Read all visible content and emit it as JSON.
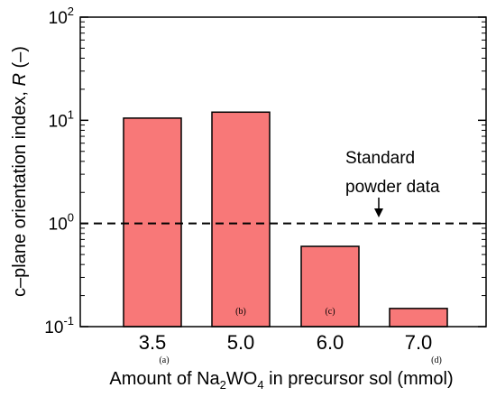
{
  "chart_data": {
    "type": "bar",
    "categories": [
      "3.5",
      "5.0",
      "6.0",
      "7.0"
    ],
    "values": [
      10.5,
      12.0,
      0.6,
      0.15
    ],
    "panel_labels": [
      "(a)",
      "(b)",
      "(c)",
      "(d)"
    ],
    "yscale": "log",
    "ylim": [
      0.1,
      100
    ],
    "y_ticks": [
      {
        "value": 0.1,
        "base": "10",
        "exp": "-1"
      },
      {
        "value": 1,
        "base": "10",
        "exp": "0"
      },
      {
        "value": 10,
        "base": "10",
        "exp": "1"
      },
      {
        "value": 100,
        "base": "10",
        "exp": "2"
      }
    ],
    "ylabel": {
      "prefix": "c–plane orientation index, ",
      "italic": "R",
      "suffix": " (–)"
    },
    "xlabel": {
      "prefix": "Amount of Na",
      "sub1": "2",
      "mid": "WO",
      "sub2": "4",
      "suffix": " in precursor sol (mmol)"
    },
    "reference_line": {
      "value": 1.0,
      "label_lines": [
        "Standard",
        "powder data"
      ]
    },
    "grid": false,
    "colors": {
      "bar_fill": "#f87878",
      "bar_stroke": "#000000",
      "axis": "#000000"
    }
  }
}
